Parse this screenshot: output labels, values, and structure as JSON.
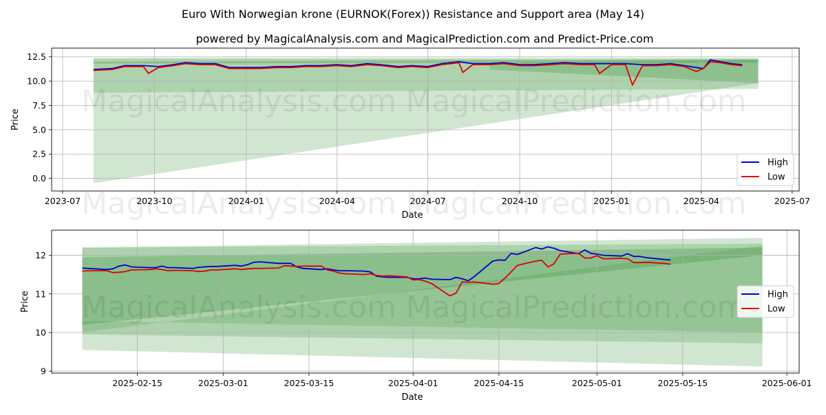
{
  "title": "Euro With Norwegian krone (EURNOK(Forex)) Resistance and Support area (May 14)",
  "subtitle": "powered by MagicalAnalysis.com and MagicalPrediction.com and Predict-Price.com",
  "watermarks": [
    "MagicalAnalysis.com",
    "MagicalPrediction.com"
  ],
  "colors": {
    "high": "#0000cc",
    "low": "#dd0000",
    "band": "#2e8b2e"
  },
  "chart_data": [
    {
      "type": "line",
      "name": "full-history",
      "xlabel": "Date",
      "ylabel": "Price",
      "xlim": [
        "2023-06-20",
        "2025-07-08"
      ],
      "ylim": [
        -1.3,
        13.4
      ],
      "x_ticks": [
        "2023-07",
        "2023-10",
        "2024-01",
        "2024-04",
        "2024-07",
        "2024-10",
        "2025-01",
        "2025-04",
        "2025-07"
      ],
      "y_ticks": [
        "0.0",
        "2.5",
        "5.0",
        "7.5",
        "10.0",
        "12.5"
      ],
      "legend": {
        "position": "lower-right",
        "entries": [
          "High",
          "Low"
        ]
      },
      "grid": true,
      "bands": [
        {
          "x0": "2023-08-01",
          "x1": "2025-05-28",
          "y0": [
            -0.5,
            9.8
          ],
          "y1": [
            12.4,
            12.4
          ],
          "opacity": 0.22
        },
        {
          "x0": "2023-08-01",
          "x1": "2025-05-28",
          "y0": [
            8.8,
            9.2
          ],
          "y1": [
            12.3,
            12.2
          ],
          "opacity": 0.22
        },
        {
          "x0": "2023-08-01",
          "x1": "2025-05-28",
          "y0": [
            11.8,
            11.9
          ],
          "y1": [
            12.0,
            12.3
          ],
          "opacity": 0.25
        },
        {
          "x0": "2024-09-01",
          "x1": "2025-05-28",
          "y0": [
            11.2,
            9.8
          ],
          "y1": [
            11.9,
            12.2
          ],
          "opacity": 0.25
        }
      ],
      "series": [
        {
          "name": "High",
          "x": [
            "2023-08-01",
            "2023-08-20",
            "2023-09-01",
            "2023-09-20",
            "2023-10-05",
            "2023-10-20",
            "2023-11-01",
            "2023-11-15",
            "2023-12-01",
            "2023-12-15",
            "2024-01-01",
            "2024-01-15",
            "2024-02-01",
            "2024-02-15",
            "2024-03-01",
            "2024-03-15",
            "2024-04-01",
            "2024-04-15",
            "2024-05-01",
            "2024-05-15",
            "2024-06-01",
            "2024-06-15",
            "2024-07-01",
            "2024-07-15",
            "2024-08-01",
            "2024-08-15",
            "2024-09-01",
            "2024-09-15",
            "2024-10-01",
            "2024-10-15",
            "2024-11-01",
            "2024-11-15",
            "2024-12-01",
            "2024-12-15",
            "2025-01-01",
            "2025-01-15",
            "2025-02-01",
            "2025-02-15",
            "2025-03-01",
            "2025-03-15",
            "2025-03-27",
            "2025-04-03",
            "2025-04-10",
            "2025-04-20",
            "2025-05-01",
            "2025-05-12"
          ],
          "values": [
            11.2,
            11.3,
            11.6,
            11.6,
            11.5,
            11.7,
            11.9,
            11.8,
            11.8,
            11.4,
            11.4,
            11.4,
            11.5,
            11.5,
            11.6,
            11.6,
            11.7,
            11.6,
            11.8,
            11.7,
            11.5,
            11.6,
            11.5,
            11.8,
            12.0,
            11.8,
            11.8,
            11.9,
            11.7,
            11.7,
            11.8,
            11.9,
            11.8,
            11.8,
            11.8,
            11.8,
            11.7,
            11.7,
            11.8,
            11.6,
            11.4,
            11.3,
            12.2,
            12.0,
            11.8,
            11.7
          ]
        },
        {
          "name": "Low",
          "x": [
            "2023-08-01",
            "2023-08-20",
            "2023-09-01",
            "2023-09-20",
            "2023-09-25",
            "2023-10-05",
            "2023-10-20",
            "2023-11-01",
            "2023-11-15",
            "2023-12-01",
            "2023-12-15",
            "2024-01-01",
            "2024-01-15",
            "2024-02-01",
            "2024-02-15",
            "2024-03-01",
            "2024-03-15",
            "2024-04-01",
            "2024-04-15",
            "2024-05-01",
            "2024-05-15",
            "2024-06-01",
            "2024-06-15",
            "2024-07-01",
            "2024-07-15",
            "2024-08-01",
            "2024-08-05",
            "2024-08-15",
            "2024-09-01",
            "2024-09-15",
            "2024-10-01",
            "2024-10-15",
            "2024-11-01",
            "2024-11-15",
            "2024-12-01",
            "2024-12-15",
            "2024-12-20",
            "2025-01-01",
            "2025-01-15",
            "2025-01-22",
            "2025-02-01",
            "2025-02-15",
            "2025-03-01",
            "2025-03-15",
            "2025-03-27",
            "2025-04-03",
            "2025-04-10",
            "2025-04-20",
            "2025-05-01",
            "2025-05-12"
          ],
          "values": [
            11.1,
            11.2,
            11.5,
            11.5,
            10.8,
            11.4,
            11.6,
            11.8,
            11.7,
            11.7,
            11.3,
            11.3,
            11.3,
            11.4,
            11.4,
            11.5,
            11.5,
            11.6,
            11.5,
            11.7,
            11.6,
            11.4,
            11.5,
            11.4,
            11.7,
            11.9,
            10.9,
            11.7,
            11.7,
            11.8,
            11.6,
            11.6,
            11.7,
            11.8,
            11.7,
            11.7,
            10.8,
            11.7,
            11.7,
            9.6,
            11.6,
            11.6,
            11.7,
            11.5,
            11.0,
            11.3,
            12.0,
            11.9,
            11.7,
            11.6
          ]
        }
      ]
    },
    {
      "type": "line",
      "name": "recent-zoom",
      "xlabel": "Date",
      "ylabel": "Price",
      "xlim": [
        "2025-02-01",
        "2025-06-03"
      ],
      "ylim": [
        8.95,
        12.65
      ],
      "x_ticks": [
        "2025-02-15",
        "2025-03-01",
        "2025-03-15",
        "2025-04-01",
        "2025-04-15",
        "2025-05-01",
        "2025-05-15",
        "2025-06-01"
      ],
      "y_ticks": [
        "9",
        "10",
        "11",
        "12"
      ],
      "legend": {
        "position": "center-right",
        "entries": [
          "High",
          "Low"
        ]
      },
      "grid": true,
      "bands": [
        {
          "x0": "2025-02-06",
          "x1": "2025-05-28",
          "y0": [
            9.55,
            9.12
          ],
          "y1": [
            12.2,
            12.45
          ],
          "opacity": 0.22
        },
        {
          "x0": "2025-02-06",
          "x1": "2025-05-28",
          "y0": [
            9.95,
            9.72
          ],
          "y1": [
            12.2,
            12.3
          ],
          "opacity": 0.22
        },
        {
          "x0": "2025-02-06",
          "x1": "2025-05-28",
          "y0": [
            10.2,
            12.0
          ],
          "y1": [
            11.95,
            12.2
          ],
          "opacity": 0.28
        },
        {
          "x0": "2025-02-06",
          "x1": "2025-05-28",
          "y0": [
            10.0,
            12.25
          ],
          "y1": [
            10.3,
            10.0
          ],
          "opacity": 0.18
        }
      ],
      "series": [
        {
          "name": "High",
          "x": [
            "2025-02-06",
            "2025-02-07",
            "2025-02-10",
            "2025-02-11",
            "2025-02-12",
            "2025-02-13",
            "2025-02-14",
            "2025-02-17",
            "2025-02-18",
            "2025-02-19",
            "2025-02-20",
            "2025-02-21",
            "2025-02-24",
            "2025-02-25",
            "2025-02-26",
            "2025-02-27",
            "2025-02-28",
            "2025-03-03",
            "2025-03-04",
            "2025-03-05",
            "2025-03-06",
            "2025-03-07",
            "2025-03-10",
            "2025-03-11",
            "2025-03-12",
            "2025-03-13",
            "2025-03-14",
            "2025-03-17",
            "2025-03-18",
            "2025-03-19",
            "2025-03-20",
            "2025-03-21",
            "2025-03-24",
            "2025-03-25",
            "2025-03-26",
            "2025-03-27",
            "2025-03-28",
            "2025-03-31",
            "2025-04-01",
            "2025-04-02",
            "2025-04-03",
            "2025-04-04",
            "2025-04-07",
            "2025-04-08",
            "2025-04-09",
            "2025-04-10",
            "2025-04-11",
            "2025-04-14",
            "2025-04-15",
            "2025-04-16",
            "2025-04-17",
            "2025-04-18",
            "2025-04-21",
            "2025-04-22",
            "2025-04-23",
            "2025-04-24",
            "2025-04-25",
            "2025-04-28",
            "2025-04-29",
            "2025-04-30",
            "2025-05-01",
            "2025-05-02",
            "2025-05-05",
            "2025-05-06",
            "2025-05-07",
            "2025-05-08",
            "2025-05-09",
            "2025-05-12",
            "2025-05-13"
          ],
          "values": [
            11.67,
            11.66,
            11.63,
            11.65,
            11.72,
            11.75,
            11.7,
            11.68,
            11.68,
            11.72,
            11.68,
            11.68,
            11.66,
            11.69,
            11.7,
            11.71,
            11.71,
            11.74,
            11.72,
            11.76,
            11.82,
            11.83,
            11.79,
            11.79,
            11.79,
            11.7,
            11.66,
            11.63,
            11.65,
            11.62,
            11.6,
            11.6,
            11.59,
            11.57,
            11.46,
            11.44,
            11.43,
            11.43,
            11.39,
            11.39,
            11.41,
            11.38,
            11.37,
            11.43,
            11.39,
            11.34,
            11.45,
            11.85,
            11.88,
            11.87,
            12.05,
            12.02,
            12.2,
            12.16,
            12.22,
            12.18,
            12.12,
            12.04,
            12.14,
            12.05,
            12.03,
            12.0,
            11.98,
            12.04,
            11.97,
            11.97,
            11.94,
            11.89,
            11.88
          ]
        },
        {
          "name": "Low",
          "x": [
            "2025-02-06",
            "2025-02-07",
            "2025-02-10",
            "2025-02-11",
            "2025-02-12",
            "2025-02-13",
            "2025-02-14",
            "2025-02-17",
            "2025-02-18",
            "2025-02-19",
            "2025-02-20",
            "2025-02-21",
            "2025-02-24",
            "2025-02-25",
            "2025-02-26",
            "2025-02-27",
            "2025-02-28",
            "2025-03-03",
            "2025-03-04",
            "2025-03-05",
            "2025-03-06",
            "2025-03-07",
            "2025-03-10",
            "2025-03-11",
            "2025-03-12",
            "2025-03-13",
            "2025-03-14",
            "2025-03-17",
            "2025-03-18",
            "2025-03-19",
            "2025-03-20",
            "2025-03-21",
            "2025-03-24",
            "2025-03-25",
            "2025-03-26",
            "2025-03-27",
            "2025-03-28",
            "2025-03-31",
            "2025-04-01",
            "2025-04-02",
            "2025-04-03",
            "2025-04-04",
            "2025-04-07",
            "2025-04-08",
            "2025-04-09",
            "2025-04-10",
            "2025-04-11",
            "2025-04-14",
            "2025-04-15",
            "2025-04-16",
            "2025-04-17",
            "2025-04-18",
            "2025-04-21",
            "2025-04-22",
            "2025-04-23",
            "2025-04-24",
            "2025-04-25",
            "2025-04-28",
            "2025-04-29",
            "2025-04-30",
            "2025-05-01",
            "2025-05-02",
            "2025-05-05",
            "2025-05-06",
            "2025-05-07",
            "2025-05-08",
            "2025-05-09",
            "2025-05-12",
            "2025-05-13"
          ],
          "values": [
            11.59,
            11.6,
            11.6,
            11.55,
            11.56,
            11.58,
            11.62,
            11.63,
            11.65,
            11.63,
            11.6,
            11.61,
            11.6,
            11.58,
            11.59,
            11.62,
            11.62,
            11.65,
            11.63,
            11.65,
            11.66,
            11.66,
            11.67,
            11.73,
            11.72,
            11.71,
            11.72,
            11.72,
            11.62,
            11.59,
            11.54,
            11.52,
            11.5,
            11.52,
            11.48,
            11.46,
            11.47,
            11.44,
            11.36,
            11.37,
            11.33,
            11.27,
            10.95,
            11.02,
            11.31,
            11.3,
            11.31,
            11.25,
            11.27,
            11.41,
            11.57,
            11.74,
            11.85,
            11.87,
            11.7,
            11.78,
            12.03,
            12.05,
            11.93,
            11.93,
            11.99,
            11.91,
            11.92,
            11.91,
            11.81,
            11.81,
            11.82,
            11.79,
            11.77
          ]
        }
      ]
    }
  ]
}
